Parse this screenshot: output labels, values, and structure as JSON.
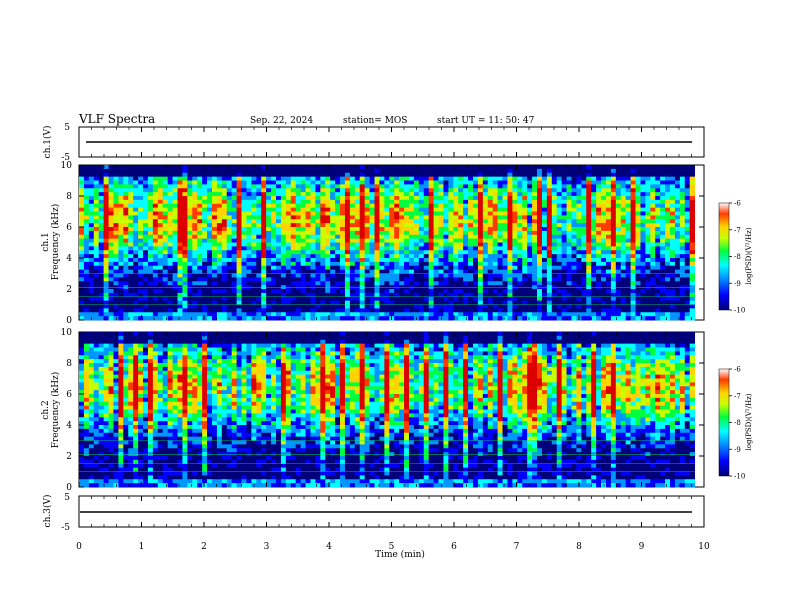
{
  "header": {
    "title": "VLF Spectra",
    "date": "Sep. 22, 2024",
    "station": "station= MOS",
    "start_ut": "start  UT =   11: 50: 47"
  },
  "chart_data": [
    {
      "type": "line",
      "name": "ch1-voltage",
      "ylabel": "ch.1(V)",
      "ylim": [
        -5,
        5
      ],
      "y_ticks": [
        "5",
        "-5"
      ],
      "trace_level": -0.5
    },
    {
      "type": "heatmap",
      "name": "ch1-spectrogram",
      "ylabel": "ch.1\nFrequency (kHz)",
      "ylim": [
        0,
        10
      ],
      "y_ticks": [
        "0",
        "2",
        "4",
        "6",
        "8",
        "10"
      ],
      "band_center_khz": 6.5,
      "colorbar": {
        "label": "log(PSD)(V²/Hz)",
        "range": [
          -10,
          -6
        ],
        "ticks": [
          "-6",
          "-7",
          "-8",
          "-9",
          "-10"
        ]
      }
    },
    {
      "type": "heatmap",
      "name": "ch2-spectrogram",
      "ylabel": "ch.2\nFrequency (kHz)",
      "ylim": [
        0,
        10
      ],
      "y_ticks": [
        "0",
        "2",
        "4",
        "6",
        "8",
        "10"
      ],
      "band_center_khz": 6.5,
      "colorbar": {
        "label": "log(PSD)(V²/Hz)",
        "range": [
          -10,
          -6
        ],
        "ticks": [
          "-6",
          "-7",
          "-8",
          "-9",
          "-10"
        ]
      }
    },
    {
      "type": "line",
      "name": "ch3-voltage",
      "ylabel": "ch.3(V)",
      "ylim": [
        -5,
        5
      ],
      "y_ticks": [
        "5",
        "-5"
      ],
      "trace_level": -0.5
    }
  ],
  "x_axis": {
    "label": "Time (min)",
    "range": [
      0,
      10
    ],
    "ticks": [
      "0",
      "1",
      "2",
      "3",
      "4",
      "5",
      "6",
      "7",
      "8",
      "9",
      "10"
    ],
    "data_end_min": 9.85
  },
  "colors": {
    "frame": "#000000",
    "colormap": [
      "#00007a",
      "#0000ff",
      "#0096ff",
      "#00ffff",
      "#00ff3c",
      "#c8ff00",
      "#ffd200",
      "#ff3c00",
      "#dc0000"
    ]
  }
}
